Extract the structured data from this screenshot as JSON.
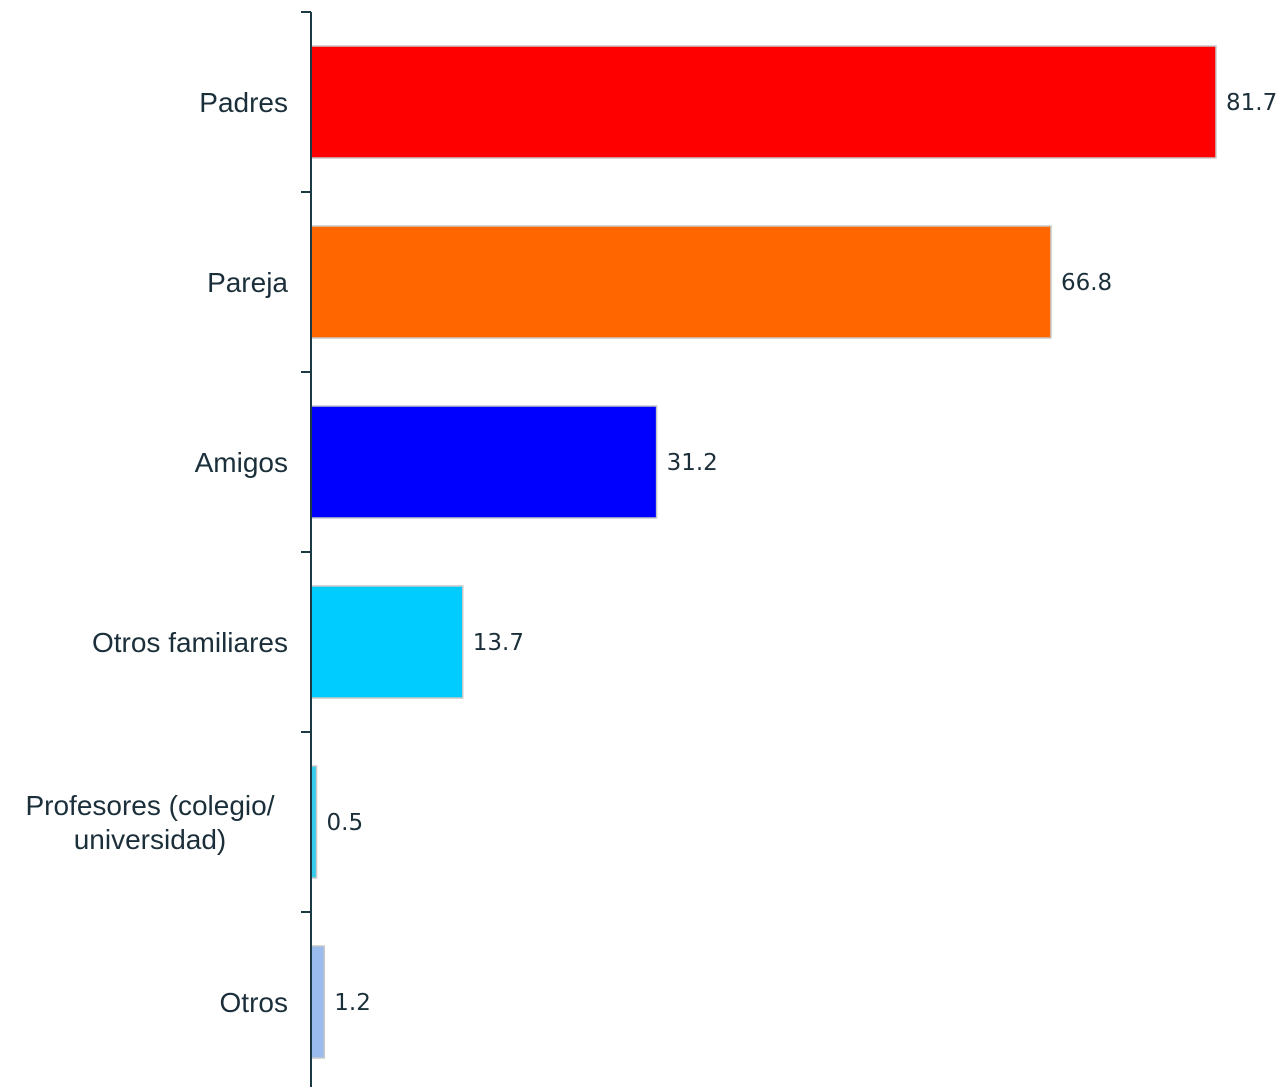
{
  "chart_data": {
    "type": "bar",
    "orientation": "horizontal",
    "title": "",
    "xlabel": "",
    "ylabel": "",
    "categories": [
      [
        "Padres"
      ],
      [
        "Pareja"
      ],
      [
        "Amigos"
      ],
      [
        "Otros familiares"
      ],
      [
        "Profesores (colegio/",
        "universidad)"
      ],
      [
        "Otros"
      ]
    ],
    "values": [
      81.7,
      66.8,
      31.2,
      13.7,
      0.5,
      1.2
    ],
    "value_labels": [
      "81.7",
      "66.8",
      "31.2",
      "13.7",
      "0.5",
      "1.2"
    ],
    "colors": [
      "#ff0000",
      "#ff6600",
      "#0000ff",
      "#00ccff",
      "#33ccee",
      "#99bbee"
    ],
    "xlim": [
      0,
      81.7
    ],
    "grid": false,
    "legend": "none"
  }
}
